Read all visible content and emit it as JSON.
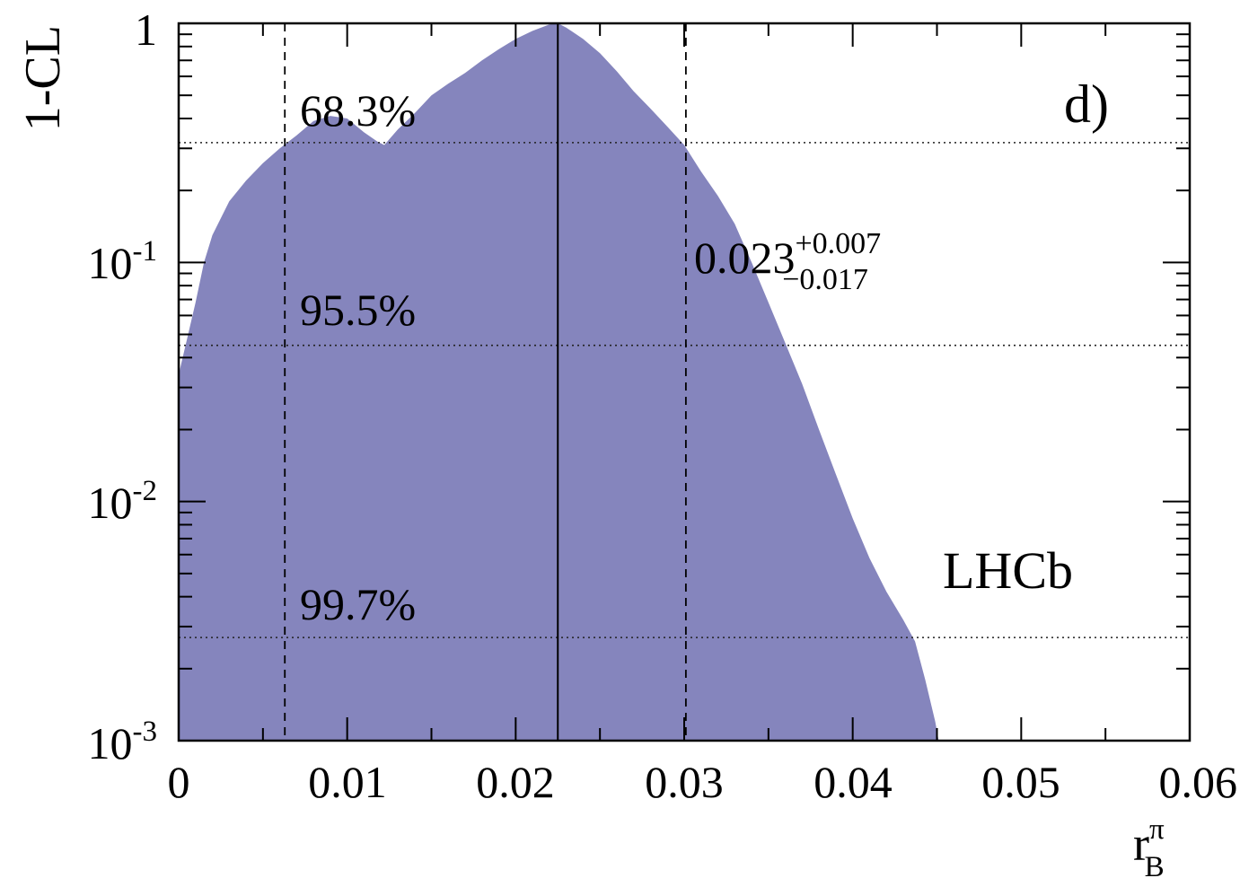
{
  "chart_data": {
    "type": "area",
    "panel_label": "d)",
    "experiment_label": "LHCb",
    "ylabel": "1-CL",
    "xlabel": {
      "base": "r",
      "superscript": "π",
      "subscript": "B"
    },
    "xlim": [
      0,
      0.06
    ],
    "ylim": [
      0.001,
      1
    ],
    "yscale": "log",
    "x_ticks": [
      {
        "value": 0,
        "label": "0"
      },
      {
        "value": 0.01,
        "label": "0.01"
      },
      {
        "value": 0.02,
        "label": "0.02"
      },
      {
        "value": 0.03,
        "label": "0.03"
      },
      {
        "value": 0.04,
        "label": "0.04"
      },
      {
        "value": 0.05,
        "label": "0.05"
      },
      {
        "value": 0.06,
        "label": "0.06"
      }
    ],
    "y_ticks": [
      {
        "value": 1,
        "base": "1",
        "exp": ""
      },
      {
        "value": 0.1,
        "base": "10",
        "exp": "-1"
      },
      {
        "value": 0.01,
        "base": "10",
        "exp": "-2"
      },
      {
        "value": 0.001,
        "base": "10",
        "exp": "-3"
      }
    ],
    "fill_color": "#8585bd",
    "series": [
      {
        "x": [
          0,
          0.0005,
          0.001,
          0.0015,
          0.002,
          0.003,
          0.004,
          0.005,
          0.006,
          0.007,
          0.008,
          0.009,
          0.01,
          0.011,
          0.0118,
          0.0122,
          0.013,
          0.014,
          0.015,
          0.016,
          0.017,
          0.018,
          0.019,
          0.02,
          0.021,
          0.022,
          0.0225,
          0.023,
          0.024,
          0.025,
          0.026,
          0.027,
          0.028,
          0.029,
          0.03,
          0.031,
          0.032,
          0.033,
          0.034,
          0.035,
          0.036,
          0.037,
          0.038,
          0.039,
          0.04,
          0.041,
          0.042,
          0.043,
          0.0437,
          0.0443,
          0.0449,
          0.0451
        ],
        "y": [
          0.034,
          0.048,
          0.068,
          0.1,
          0.13,
          0.18,
          0.22,
          0.26,
          0.3,
          0.34,
          0.39,
          0.41,
          0.4,
          0.35,
          0.32,
          0.31,
          0.36,
          0.42,
          0.5,
          0.56,
          0.62,
          0.7,
          0.78,
          0.86,
          0.93,
          0.99,
          1.0,
          0.96,
          0.86,
          0.75,
          0.63,
          0.52,
          0.44,
          0.37,
          0.31,
          0.24,
          0.19,
          0.145,
          0.1,
          0.068,
          0.046,
          0.031,
          0.02,
          0.013,
          0.0085,
          0.0058,
          0.0042,
          0.0032,
          0.0026,
          0.0018,
          0.0012,
          0.001
        ]
      }
    ],
    "best_fit": 0.0225,
    "interval_68": [
      0.0063,
      0.0301
    ],
    "cl_lines": [
      {
        "value": 0.317,
        "label": "68.3%"
      },
      {
        "value": 0.045,
        "label": "95.5%"
      },
      {
        "value": 0.0027,
        "label": "99.7%"
      }
    ],
    "result": {
      "central": "0.023",
      "plus": "+0.007",
      "minus": "−0.017"
    },
    "grid": false
  }
}
